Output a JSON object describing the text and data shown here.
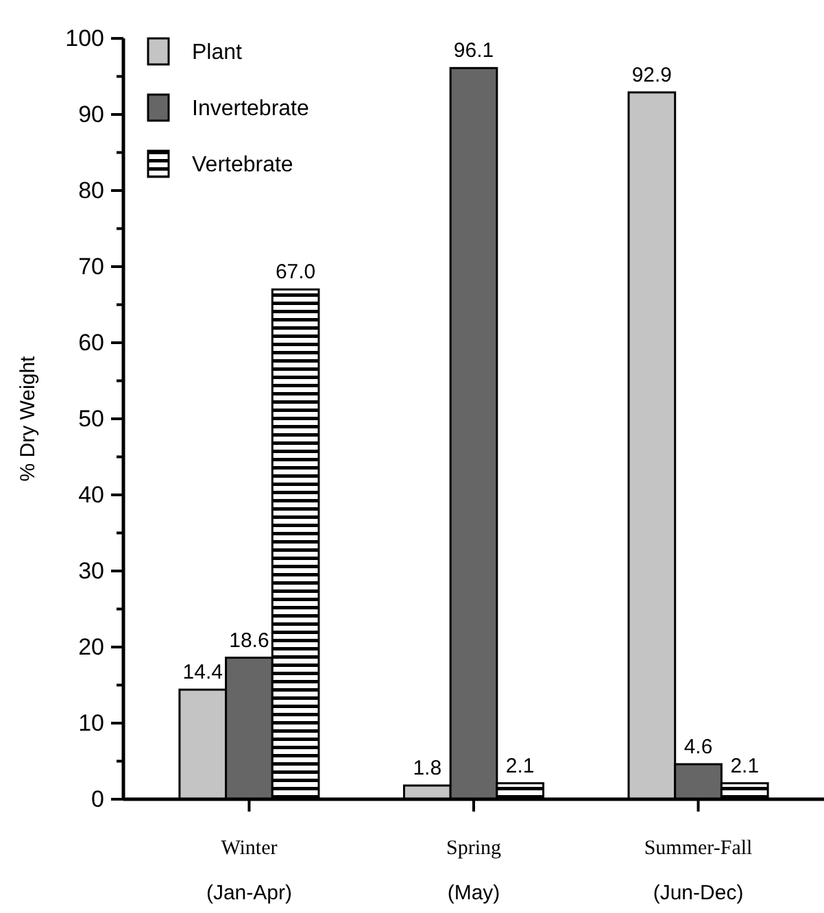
{
  "chart_data": {
    "type": "bar",
    "ylabel": "% Dry Weight",
    "categories": [
      "Winter\n(Jan-Apr)",
      "Spring\n(May)",
      "Summer-Fall\n(Jun-Dec)"
    ],
    "series": [
      {
        "name": "Plant",
        "color": "#c4c4c4",
        "values": [
          14.4,
          1.8,
          92.9
        ]
      },
      {
        "name": "Invertebrate",
        "color": "#666666",
        "values": [
          18.6,
          96.1,
          4.6
        ]
      },
      {
        "name": "Vertebrate",
        "color": "#000000",
        "values": [
          67.0,
          2.1,
          2.1
        ]
      }
    ],
    "value_labels": [
      [
        "14.4",
        "1.8",
        "92.9"
      ],
      [
        "18.6",
        "96.1",
        "4.6"
      ],
      [
        "67.0",
        "2.1",
        "2.1"
      ]
    ],
    "ylim": [
      0,
      100
    ],
    "yticks": [
      0,
      {
        "value": 5,
        "label": null
      },
      10,
      {
        "value": 15,
        "label": null
      },
      20,
      {
        "value": 25,
        "label": null
      },
      30,
      {
        "value": 35,
        "label": null
      },
      40,
      {
        "value": 45,
        "label": null
      },
      50,
      {
        "value": 55,
        "label": null
      },
      60,
      {
        "value": 65,
        "label": null
      },
      70,
      {
        "value": 75,
        "label": null
      },
      80,
      {
        "value": 85,
        "label": null
      },
      90,
      {
        "value": 95,
        "label": null
      },
      100
    ],
    "legend": "top left",
    "grid": false
  }
}
